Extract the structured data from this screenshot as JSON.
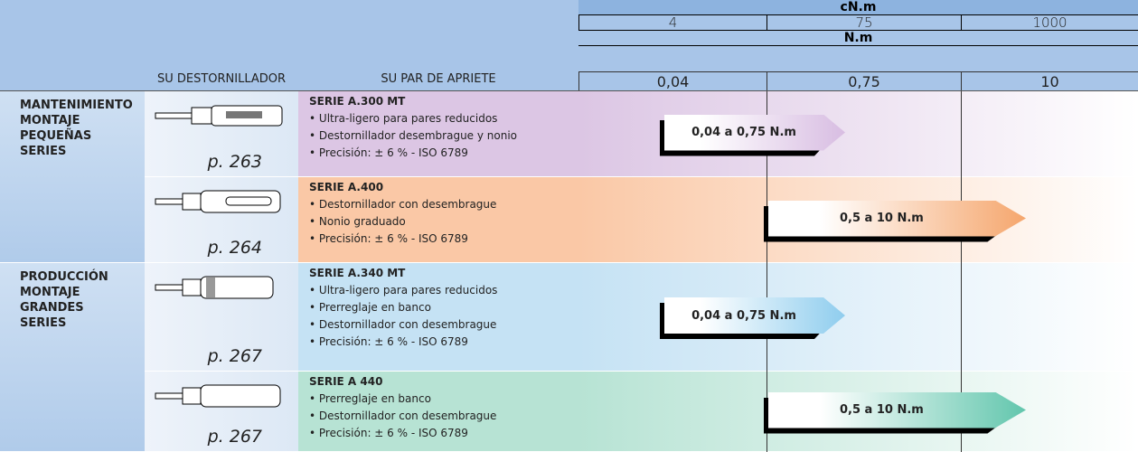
{
  "header": {
    "unit_top": "cN.m",
    "top_scale": [
      "4",
      "75",
      "1000"
    ],
    "unit_bottom": "N.m",
    "bottom_scale": [
      "0,04",
      "0,75",
      "10"
    ],
    "col_tool": "SU DESTORNILLADOR",
    "col_torque": "SU PAR DE APRIETE"
  },
  "groups": [
    {
      "lines": [
        "MANTENIMIENTO",
        "MONTAJE",
        "PEQUEÑAS",
        "SERIES"
      ]
    },
    {
      "lines": [
        "PRODUCCIÓN",
        "MONTAJE",
        "GRANDES",
        "SERIES"
      ]
    }
  ],
  "rows": [
    {
      "series": "SERIE A.300 MT",
      "features": [
        "Ultra-ligero para pares reducidos",
        "Destornillador desembrague y nonio",
        "Precisión: ± 6 % - ISO 6789"
      ],
      "page": "p. 263",
      "range": "0,04 a 0,75 N.m"
    },
    {
      "series": "SERIE A.400",
      "features": [
        "Destornillador con desembrague",
        "Nonio graduado",
        "Precisión: ± 6 % - ISO 6789"
      ],
      "page": "p. 264",
      "range": "0,5 a 10 N.m"
    },
    {
      "series": "SERIE A.340 MT",
      "features": [
        "Ultra-ligero para pares reducidos",
        "Prerreglaje en banco",
        "Destornillador con desembrague",
        "Precisión: ± 6 % - ISO 6789"
      ],
      "page": "p. 267",
      "range": "0,04 a 0,75 N.m"
    },
    {
      "series": "SERIE A 440",
      "features": [
        "Prerreglaje en banco",
        "Destornillador con desembrague",
        "Precisión: ± 6 % - ISO 6789"
      ],
      "page": "p. 267",
      "range": "0,5 a 10 N.m"
    }
  ]
}
